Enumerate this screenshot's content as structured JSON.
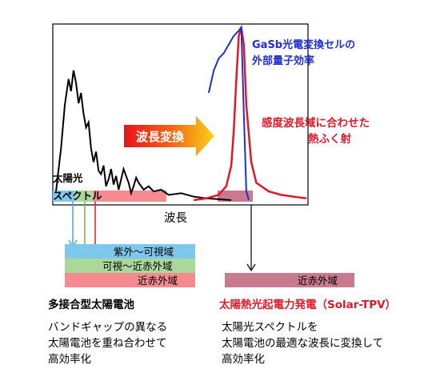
{
  "colors": {
    "solar_spectrum": "#000000",
    "gasb_eqe": "#1f2fd0",
    "emission": "#e0182a",
    "uv_visible_band": "#7ec8ee",
    "visible_nir_band": "#aad79a",
    "nir_band": "#f58a90",
    "tpv_band": "#c97a8e"
  },
  "chart": {
    "xlabel": "波長",
    "gasb_label_lines": [
      "GaSb光電変換セルの",
      "外部量子効率"
    ],
    "emission_label_lines": [
      "感度波長域に合わせた",
      "熱ふく射"
    ],
    "conversion_arrow_label": "波長変換",
    "solar_label_lines": [
      "太陽光",
      "スペクトル"
    ]
  },
  "chart_data": {
    "type": "line",
    "title": "",
    "xlabel": "波長",
    "ylabel": "",
    "grid": false,
    "series": [
      {
        "name": "太陽光スペクトル",
        "x": [
          0.0,
          0.02,
          0.035,
          0.05,
          0.06,
          0.07,
          0.08,
          0.09,
          0.1,
          0.11,
          0.12,
          0.13,
          0.14,
          0.15,
          0.16,
          0.17,
          0.18,
          0.19,
          0.2,
          0.21,
          0.22,
          0.23,
          0.24,
          0.25,
          0.26,
          0.27,
          0.28,
          0.29,
          0.3,
          0.31,
          0.32,
          0.33,
          0.35,
          0.37,
          0.39,
          0.42,
          0.45,
          0.5,
          0.55,
          0.6,
          0.7
        ],
        "y": [
          0.05,
          0.3,
          0.55,
          0.7,
          0.63,
          0.75,
          0.68,
          0.56,
          0.62,
          0.5,
          0.42,
          0.45,
          0.3,
          0.22,
          0.28,
          0.17,
          0.15,
          0.2,
          0.08,
          0.12,
          0.18,
          0.09,
          0.14,
          0.06,
          0.12,
          0.18,
          0.14,
          0.1,
          0.04,
          0.08,
          0.13,
          0.1,
          0.06,
          0.08,
          0.05,
          0.06,
          0.03,
          0.04,
          0.02,
          0.01,
          0.0
        ]
      },
      {
        "name": "GaSb光電変換セルの外部量子効率",
        "x": [
          0.61,
          0.63,
          0.65,
          0.67,
          0.69,
          0.71,
          0.73,
          0.74,
          0.75,
          0.76,
          0.77
        ],
        "y": [
          0.62,
          0.75,
          0.82,
          0.85,
          0.9,
          0.95,
          0.98,
          1.0,
          0.5,
          0.05,
          0.0
        ]
      },
      {
        "name": "熱ふく射",
        "x": [
          0.55,
          0.6,
          0.65,
          0.68,
          0.7,
          0.71,
          0.72,
          0.73,
          0.74,
          0.75,
          0.76,
          0.78,
          0.8,
          0.85,
          0.9,
          0.95,
          1.0
        ],
        "y": [
          0.0,
          0.01,
          0.03,
          0.08,
          0.2,
          0.4,
          0.7,
          0.95,
          1.0,
          0.9,
          0.55,
          0.22,
          0.1,
          0.05,
          0.03,
          0.02,
          0.01
        ]
      }
    ]
  },
  "bands": {
    "uv_visible": "紫外～可視域",
    "visible_nir": "可視～近赤外域",
    "nir": "近赤外域",
    "tpv_nir": "近赤外域"
  },
  "left_text": {
    "heading": "多接合型太陽電池",
    "lines": [
      "バンドギャップの異なる",
      "太陽電池を重ね合わせて",
      "高効率化"
    ]
  },
  "right_text": {
    "heading": "太陽熱光起電力発電（Solar-TPV）",
    "lines": [
      "太陽光スペクトルを",
      "太陽電池の最適な波長に変換して",
      "高効率化"
    ]
  }
}
